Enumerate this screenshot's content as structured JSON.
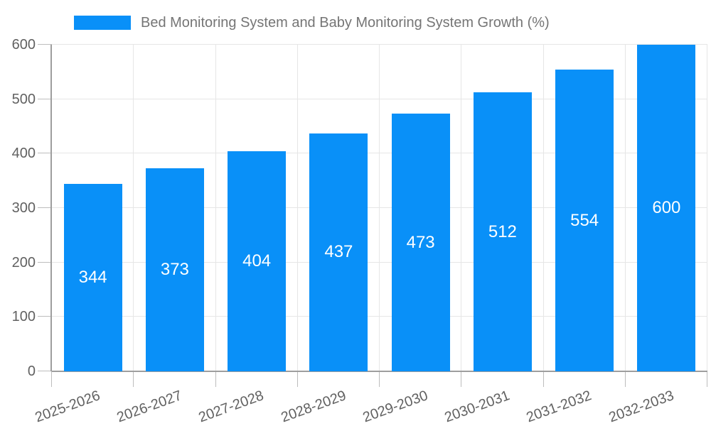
{
  "chart_data": {
    "type": "bar",
    "title": "Bed Monitoring System and Baby Monitoring System Growth (%)",
    "legend": {
      "position": "top",
      "entries": [
        {
          "label": "Bed Monitoring System and Baby Monitoring System Growth (%)",
          "color": "#0990f8"
        }
      ]
    },
    "categories": [
      "2025-2026",
      "2026-2027",
      "2027-2028",
      "2028-2029",
      "2029-2030",
      "2030-2031",
      "2031-2032",
      "2032-2033"
    ],
    "values": [
      344,
      373,
      404,
      437,
      473,
      512,
      554,
      600
    ],
    "xlabel": "",
    "ylabel": "",
    "ylim": [
      0,
      600
    ],
    "yticks": [
      0,
      100,
      200,
      300,
      400,
      500,
      600
    ],
    "grid": true,
    "bar_value_labels": {
      "position": "inside-center",
      "color": "#ffffff"
    },
    "colors": {
      "bar": "#0990f8",
      "legend_text": "#757575",
      "axis_text": "#616161",
      "gridline": "#e6e6e6",
      "tick": "#bdbdbd",
      "axis_line": "#9e9e9e",
      "value_label_text": "#ffffff",
      "background": "#ffffff"
    }
  }
}
